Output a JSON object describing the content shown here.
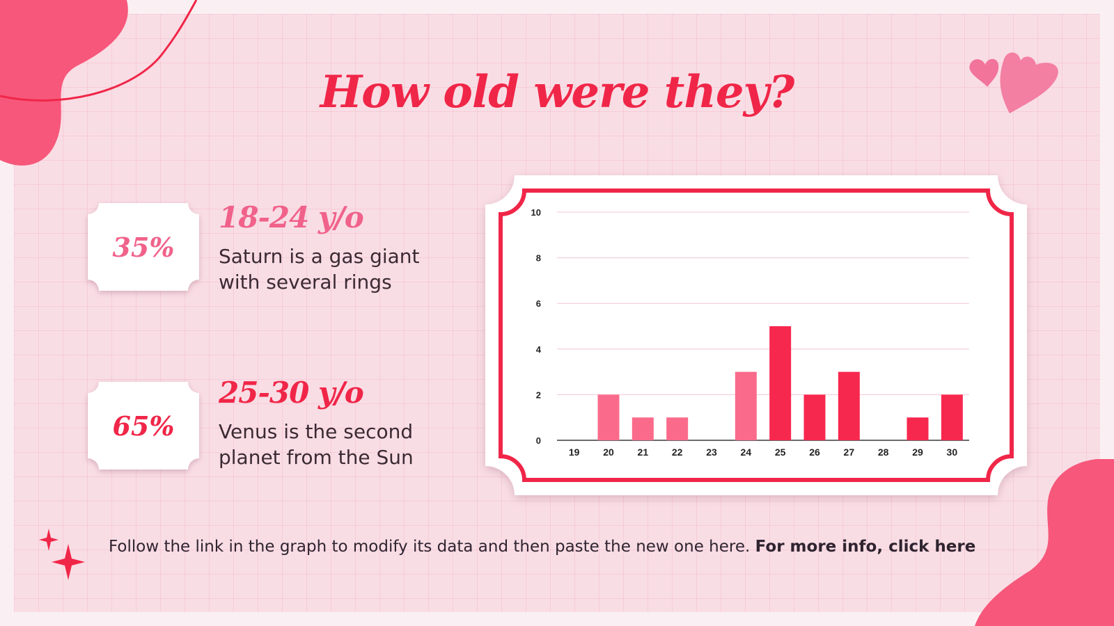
{
  "title": "How old were they?",
  "colors": {
    "accent": "#f02648",
    "pink": "#f0628a",
    "bar_light": "#fa6b8b",
    "bar_dark": "#f7284e",
    "background": "#f9dde5"
  },
  "stats": [
    {
      "percent": "35%",
      "title": "18-24 y/o",
      "desc_line1": "Saturn is a gas giant",
      "desc_line2": "with several rings"
    },
    {
      "percent": "65%",
      "title": "25-30 y/o",
      "desc_line1": "Venus is the second",
      "desc_line2": "planet from the Sun"
    }
  ],
  "footer": {
    "text": "Follow the link in the graph to modify its data and then paste the new one here.",
    "link": "For more info, click here"
  },
  "chart_data": {
    "type": "bar",
    "categories": [
      "19",
      "20",
      "21",
      "22",
      "23",
      "24",
      "25",
      "26",
      "27",
      "28",
      "29",
      "30"
    ],
    "values": [
      0,
      2,
      1,
      1,
      0,
      3,
      5,
      2,
      3,
      0,
      1,
      2
    ],
    "ylim": [
      0,
      10
    ],
    "yticks": [
      0,
      2,
      4,
      6,
      8,
      10
    ],
    "grid": true,
    "title": "",
    "xlabel": "",
    "ylabel": "",
    "bar_colors": [
      "#fa6b8b",
      "#fa6b8b",
      "#fa6b8b",
      "#fa6b8b",
      "#fa6b8b",
      "#fa6b8b",
      "#f7284e",
      "#f7284e",
      "#f7284e",
      "#f7284e",
      "#f7284e",
      "#f7284e"
    ]
  }
}
